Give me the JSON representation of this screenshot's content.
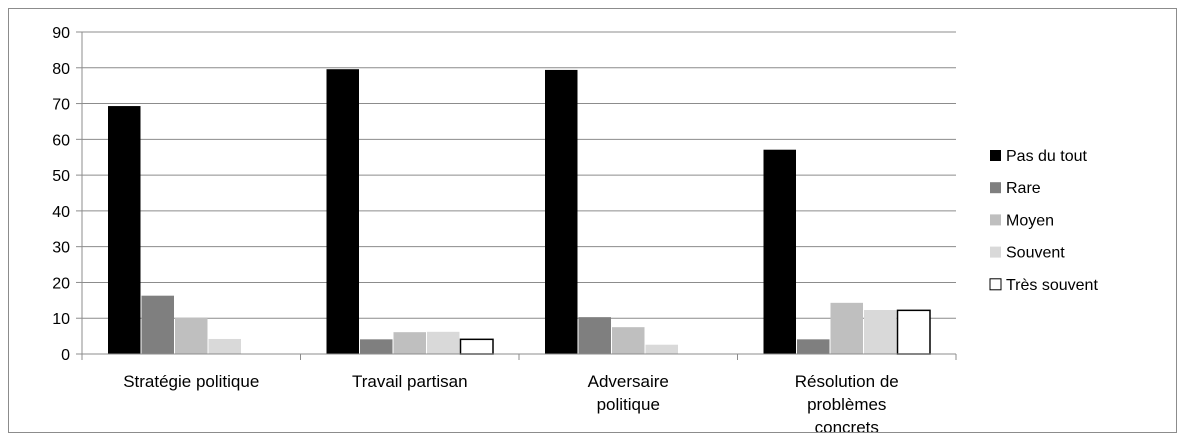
{
  "chart_data": {
    "type": "bar",
    "title": "",
    "xlabel": "",
    "ylabel": "",
    "ylim": [
      0,
      90
    ],
    "yticks": [
      "0",
      "10",
      "20",
      "30",
      "40",
      "50",
      "60",
      "70",
      "80",
      "90"
    ],
    "grid": true,
    "legend_position": "right",
    "categories": [
      [
        "Stratégie politique"
      ],
      [
        "Travail partisan"
      ],
      [
        "Adversaire",
        "politique"
      ],
      [
        "Résolution de",
        "problèmes",
        "concrets"
      ]
    ],
    "series": [
      {
        "name": "Pas du tout",
        "color": "#000000",
        "values": [
          69.3,
          79.6,
          79.4,
          57.1
        ]
      },
      {
        "name": "Rare",
        "color": "#7f7f7f",
        "values": [
          16.3,
          4.1,
          10.3,
          4.1
        ]
      },
      {
        "name": "Moyen",
        "color": "#bfbfbf",
        "values": [
          10.2,
          6.1,
          7.5,
          14.3
        ]
      },
      {
        "name": "Souvent",
        "color": "#d9d9d9",
        "values": [
          4.2,
          6.2,
          2.6,
          12.3
        ]
      },
      {
        "name": "Très souvent",
        "color": "#ffffff",
        "values": [
          0,
          4.1,
          0,
          12.2
        ]
      }
    ]
  }
}
